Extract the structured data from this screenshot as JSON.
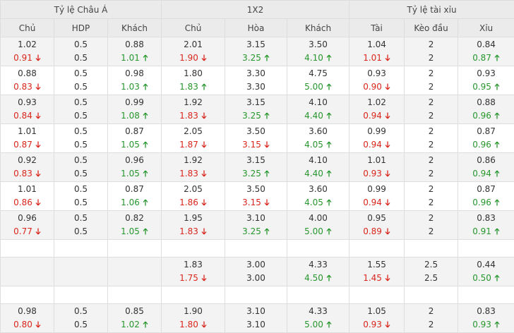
{
  "header": {
    "groups": [
      "Tỷ lệ Châu Á",
      "1X2",
      "Tỷ lệ tài xỉu"
    ],
    "columns": [
      "Chủ",
      "HDP",
      "Khách",
      "Chủ",
      "Hòa",
      "Khách",
      "Tài",
      "Kèo đầu",
      "Xỉu"
    ]
  },
  "table": {
    "rows": [
      [
        {
          "top": "1.02",
          "bottom": "0.91",
          "move": "down"
        },
        {
          "top": "0.5",
          "bottom": "0.5"
        },
        {
          "top": "0.88",
          "bottom": "1.01",
          "move": "up"
        },
        {
          "top": "2.01",
          "bottom": "1.90",
          "move": "down"
        },
        {
          "top": "3.15",
          "bottom": "3.25",
          "move": "up"
        },
        {
          "top": "3.50",
          "bottom": "4.10",
          "move": "up"
        },
        {
          "top": "1.04",
          "bottom": "1.01",
          "move": "down"
        },
        {
          "top": "2",
          "bottom": "2"
        },
        {
          "top": "0.84",
          "bottom": "0.87",
          "move": "up"
        }
      ],
      [
        {
          "top": "0.88",
          "bottom": "0.83",
          "move": "down"
        },
        {
          "top": "0.5",
          "bottom": "0.5"
        },
        {
          "top": "0.98",
          "bottom": "1.03",
          "move": "up"
        },
        {
          "top": "1.80",
          "bottom": "1.83",
          "move": "up"
        },
        {
          "top": "3.30",
          "bottom": "3.30"
        },
        {
          "top": "4.75",
          "bottom": "5.00",
          "move": "up"
        },
        {
          "top": "0.93",
          "bottom": "0.90",
          "move": "down"
        },
        {
          "top": "2",
          "bottom": "2"
        },
        {
          "top": "0.93",
          "bottom": "0.95",
          "move": "up"
        }
      ],
      [
        {
          "top": "0.93",
          "bottom": "0.84",
          "move": "down"
        },
        {
          "top": "0.5",
          "bottom": "0.5"
        },
        {
          "top": "0.99",
          "bottom": "1.08",
          "move": "up"
        },
        {
          "top": "1.92",
          "bottom": "1.83",
          "move": "down"
        },
        {
          "top": "3.15",
          "bottom": "3.25",
          "move": "up"
        },
        {
          "top": "4.10",
          "bottom": "4.40",
          "move": "up"
        },
        {
          "top": "1.02",
          "bottom": "0.94",
          "move": "down"
        },
        {
          "top": "2",
          "bottom": "2"
        },
        {
          "top": "0.88",
          "bottom": "0.96",
          "move": "up"
        }
      ],
      [
        {
          "top": "1.01",
          "bottom": "0.87",
          "move": "down"
        },
        {
          "top": "0.5",
          "bottom": "0.5"
        },
        {
          "top": "0.87",
          "bottom": "1.05",
          "move": "up"
        },
        {
          "top": "2.05",
          "bottom": "1.87",
          "move": "down"
        },
        {
          "top": "3.50",
          "bottom": "3.15",
          "move": "down"
        },
        {
          "top": "3.60",
          "bottom": "4.05",
          "move": "up"
        },
        {
          "top": "0.99",
          "bottom": "0.94",
          "move": "down"
        },
        {
          "top": "2",
          "bottom": "2"
        },
        {
          "top": "0.87",
          "bottom": "0.96",
          "move": "up"
        }
      ],
      [
        {
          "top": "0.92",
          "bottom": "0.83",
          "move": "down"
        },
        {
          "top": "0.5",
          "bottom": "0.5"
        },
        {
          "top": "0.96",
          "bottom": "1.05",
          "move": "up"
        },
        {
          "top": "1.92",
          "bottom": "1.83",
          "move": "down"
        },
        {
          "top": "3.15",
          "bottom": "3.25",
          "move": "up"
        },
        {
          "top": "4.10",
          "bottom": "4.40",
          "move": "up"
        },
        {
          "top": "1.01",
          "bottom": "0.93",
          "move": "down"
        },
        {
          "top": "2",
          "bottom": "2"
        },
        {
          "top": "0.86",
          "bottom": "0.94",
          "move": "up"
        }
      ],
      [
        {
          "top": "1.01",
          "bottom": "0.86",
          "move": "down"
        },
        {
          "top": "0.5",
          "bottom": "0.5"
        },
        {
          "top": "0.87",
          "bottom": "1.06",
          "move": "up"
        },
        {
          "top": "2.05",
          "bottom": "1.86",
          "move": "down"
        },
        {
          "top": "3.50",
          "bottom": "3.15",
          "move": "down"
        },
        {
          "top": "3.60",
          "bottom": "4.05",
          "move": "up"
        },
        {
          "top": "0.99",
          "bottom": "0.94",
          "move": "down"
        },
        {
          "top": "2",
          "bottom": "2"
        },
        {
          "top": "0.87",
          "bottom": "0.96",
          "move": "up"
        }
      ],
      [
        {
          "top": "0.96",
          "bottom": "0.77",
          "move": "down"
        },
        {
          "top": "0.5",
          "bottom": "0.5"
        },
        {
          "top": "0.82",
          "bottom": "1.05",
          "move": "up"
        },
        {
          "top": "1.95",
          "bottom": "1.83",
          "move": "down"
        },
        {
          "top": "3.10",
          "bottom": "3.25",
          "move": "up"
        },
        {
          "top": "4.00",
          "bottom": "5.00",
          "move": "up"
        },
        {
          "top": "0.95",
          "bottom": "0.89",
          "move": "down"
        },
        {
          "top": "2",
          "bottom": "2"
        },
        {
          "top": "0.83",
          "bottom": "0.91",
          "move": "up"
        }
      ],
      null,
      [
        null,
        null,
        null,
        {
          "top": "1.83",
          "bottom": "1.75",
          "move": "down"
        },
        {
          "top": "3.00",
          "bottom": "3.00"
        },
        {
          "top": "4.33",
          "bottom": "4.50",
          "move": "up"
        },
        {
          "top": "1.55",
          "bottom": "1.45",
          "move": "down"
        },
        {
          "top": "2.5",
          "bottom": "2.5"
        },
        {
          "top": "0.44",
          "bottom": "0.50",
          "move": "up"
        }
      ],
      null,
      [
        {
          "top": "0.98",
          "bottom": "0.80",
          "move": "down"
        },
        {
          "top": "0.5",
          "bottom": "0.5"
        },
        {
          "top": "0.85",
          "bottom": "1.02",
          "move": "up"
        },
        {
          "top": "1.90",
          "bottom": "1.80",
          "move": "down"
        },
        {
          "top": "3.10",
          "bottom": "3.10"
        },
        {
          "top": "4.33",
          "bottom": "5.00",
          "move": "up"
        },
        {
          "top": "1.05",
          "bottom": "0.93",
          "move": "down"
        },
        {
          "top": "2",
          "bottom": "2"
        },
        {
          "top": "0.83",
          "bottom": "0.93",
          "move": "up"
        }
      ]
    ]
  }
}
